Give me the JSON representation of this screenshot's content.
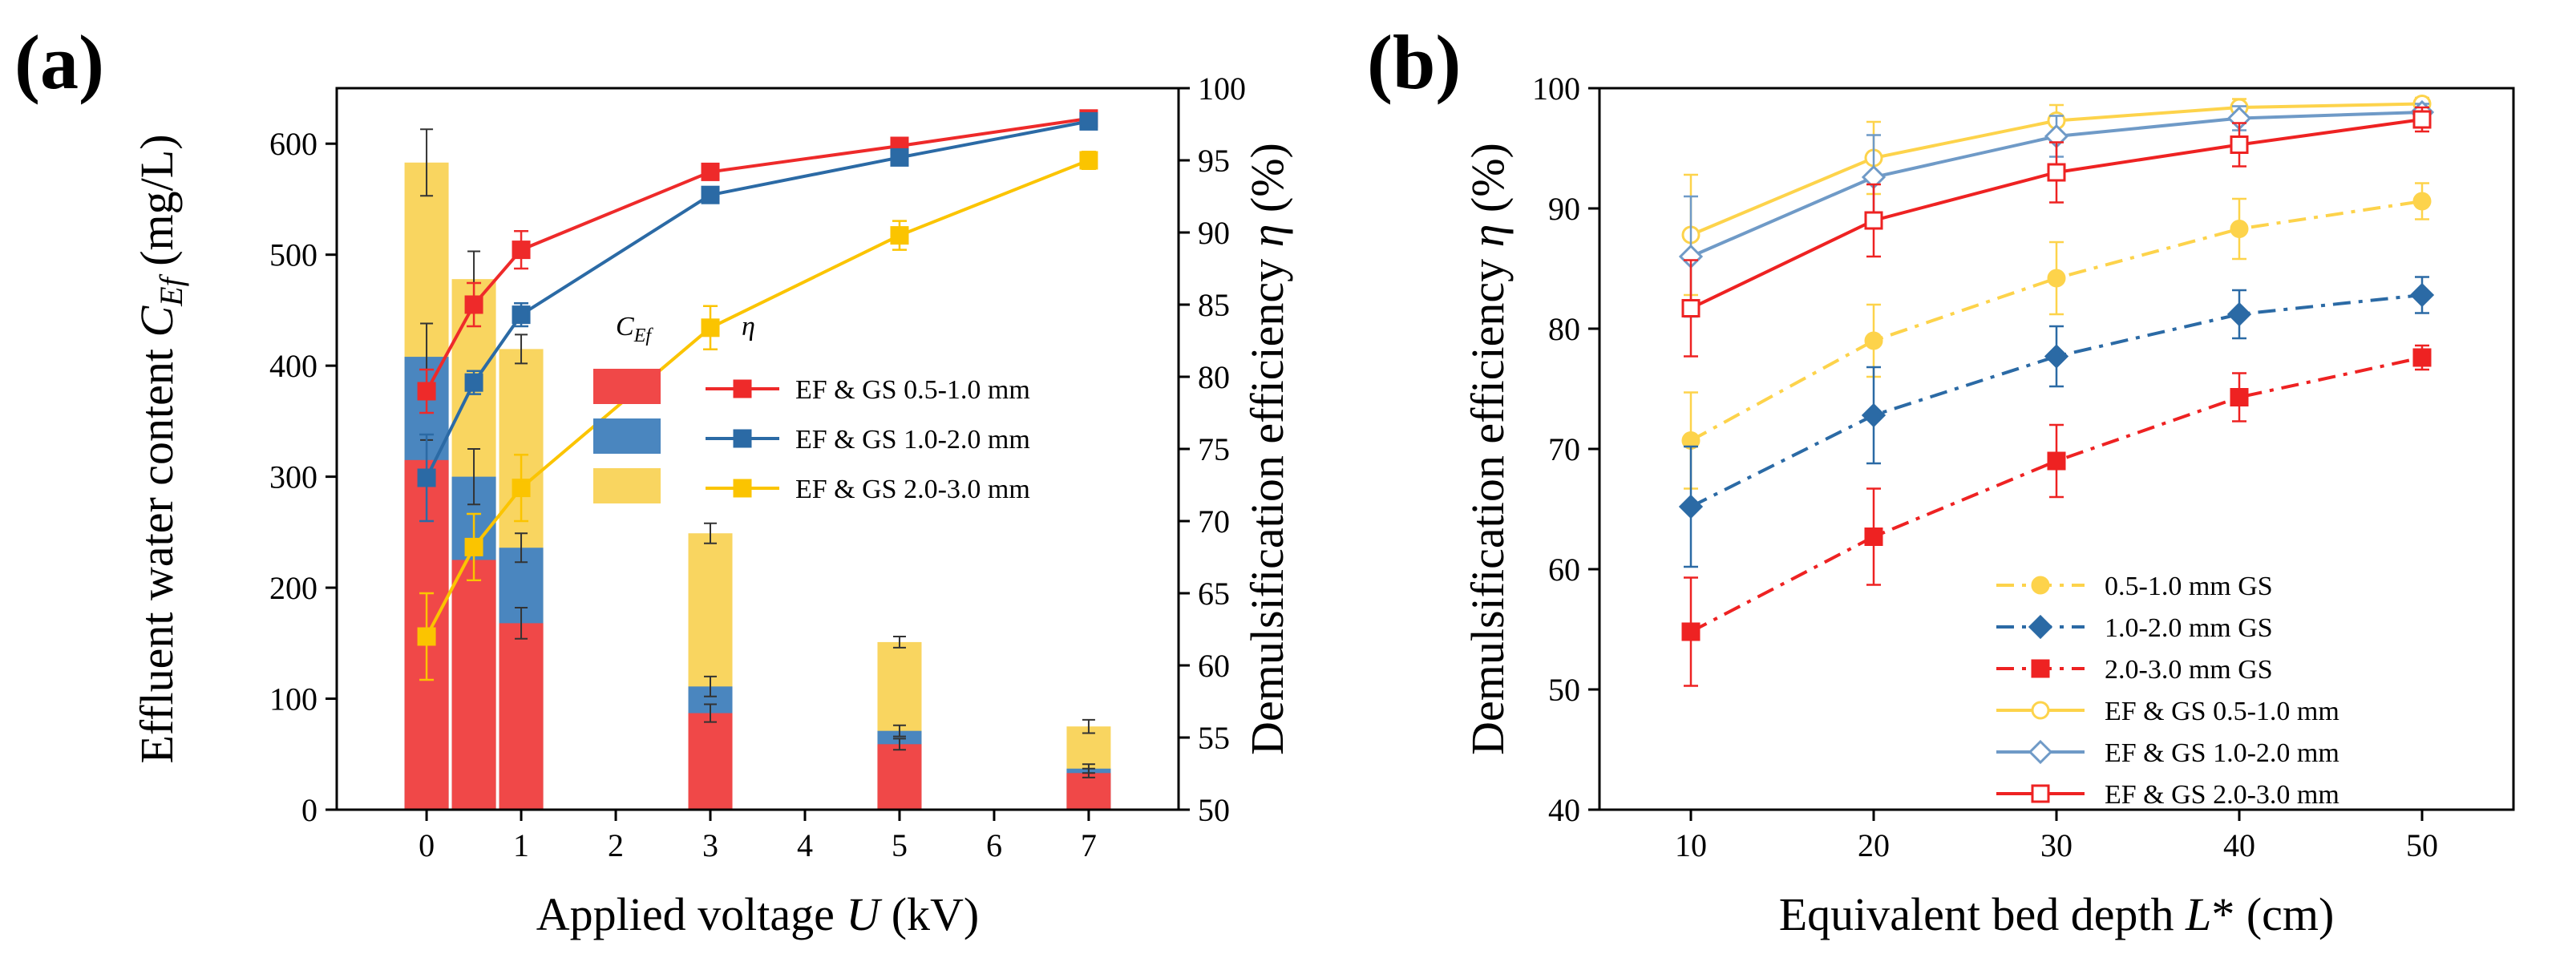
{
  "colors": {
    "red": "#ee2a2a",
    "blue": "#2b6aa5",
    "yellow": "#fbc400",
    "bar_red": "#f04848",
    "bar_blue": "#4a86bf",
    "bar_yellow": "#f9d560",
    "light_yellow": "#fdd34b",
    "light_blue": "#6f9ac7",
    "bright_red": "#ee2222"
  },
  "panel_a": {
    "label": "(a)",
    "xlabel_text": "Applied voltage",
    "xlabel_var": "U",
    "xlabel_unit": "(kV)",
    "ylabel_text": "Effluent water content",
    "ylabel_var": "C",
    "ylabel_sub": "Ef",
    "ylabel_unit": "(mg/L)",
    "y2label_text": "Demulsification efficiency",
    "y2label_var": "η",
    "y2label_unit": "(%)",
    "legend_col1_var": "C",
    "legend_col1_sub": "Ef",
    "legend_col2_var": "η"
  },
  "panel_b": {
    "label": "(b)",
    "xlabel_text": "Equivalent bed depth",
    "xlabel_var": "L",
    "xlabel_suffix": "* (cm)",
    "ylabel_text": "Demulsification efficiency",
    "ylabel_var": "η",
    "ylabel_unit": "(%)"
  },
  "chart_data": [
    {
      "type": "bar",
      "panel": "a",
      "subtype": "stacked bar + line (dual axis)",
      "x_ticks": [
        "0",
        "1",
        "2",
        "3",
        "4",
        "5",
        "6",
        "7"
      ],
      "xlim": [
        -0.95,
        7.95
      ],
      "ylim": [
        0,
        650
      ],
      "y_ticks": [
        "0",
        "100",
        "200",
        "300",
        "400",
        "500",
        "600"
      ],
      "y2lim": [
        50,
        100
      ],
      "y2_ticks": [
        "50",
        "55",
        "60",
        "65",
        "70",
        "75",
        "80",
        "85",
        "90",
        "95",
        "100"
      ],
      "bars": [
        {
          "x": 0,
          "red": 315,
          "blue": 408,
          "yellow": 583,
          "err_red": 18,
          "err_blue": 30,
          "err_yellow": 30
        },
        {
          "x": 0.5,
          "red": 225,
          "blue": 300,
          "yellow": 478,
          "err_red": 18,
          "err_blue": 25,
          "err_yellow": 25
        },
        {
          "x": 1,
          "red": 168,
          "blue": 236,
          "yellow": 415,
          "err_red": 14,
          "err_blue": 13,
          "err_yellow": 13
        },
        {
          "x": 3,
          "red": 87,
          "blue": 111,
          "yellow": 249,
          "err_red": 8,
          "err_blue": 9,
          "err_yellow": 9
        },
        {
          "x": 5,
          "red": 59,
          "blue": 71,
          "yellow": 151,
          "err_red": 5,
          "err_blue": 5,
          "err_yellow": 5
        },
        {
          "x": 7,
          "red": 33,
          "blue": 37,
          "yellow": 75,
          "err_red": 4,
          "err_blue": 4,
          "err_yellow": 6
        }
      ],
      "series": [
        {
          "name": "EF & GS   0.5-1.0 mm",
          "color_key": "red",
          "x": [
            0,
            0.5,
            1,
            3,
            5,
            7
          ],
          "y": [
            79.0,
            85.0,
            88.8,
            94.2,
            96.0,
            97.9
          ],
          "err": [
            1.5,
            1.5,
            1.3,
            0.5,
            0.3,
            0.3
          ]
        },
        {
          "name": "EF & GS   1.0-2.0 mm",
          "color_key": "blue",
          "x": [
            0,
            0.5,
            1,
            3,
            5,
            7
          ],
          "y": [
            73.0,
            79.6,
            84.3,
            92.6,
            95.2,
            97.7
          ],
          "err": [
            3.0,
            0.8,
            0.8,
            0.3,
            0.3,
            0.3
          ]
        },
        {
          "name": "EF & GS   2.0-3.0 mm",
          "color_key": "yellow",
          "x": [
            0,
            0.5,
            1,
            3,
            5,
            7
          ],
          "y": [
            62.0,
            68.2,
            72.3,
            83.4,
            89.8,
            95.0
          ],
          "err": [
            3.0,
            2.3,
            2.3,
            1.5,
            1.0,
            0.6
          ]
        }
      ]
    },
    {
      "type": "line",
      "panel": "b",
      "x_ticks": [
        "10",
        "20",
        "30",
        "40",
        "50"
      ],
      "xlim": [
        5,
        55
      ],
      "ylim": [
        40,
        100
      ],
      "y_ticks": [
        "40",
        "50",
        "60",
        "70",
        "80",
        "90",
        "100"
      ],
      "x": [
        10,
        20,
        30,
        40,
        50
      ],
      "series": [
        {
          "name": "0.5-1.0 mm GS",
          "color_key": "light_yellow",
          "marker": "circle-filled",
          "dash": "dashdot",
          "y": [
            70.7,
            79.0,
            84.2,
            88.3,
            90.6
          ],
          "err": [
            4.0,
            3.0,
            3.0,
            2.5,
            1.5
          ]
        },
        {
          "name": "1.0-2.0 mm GS",
          "color_key": "blue",
          "marker": "diamond-filled",
          "dash": "dashdot",
          "y": [
            65.2,
            72.8,
            77.7,
            81.2,
            82.8
          ],
          "err": [
            5.0,
            4.0,
            2.5,
            2.0,
            1.5
          ]
        },
        {
          "name": "2.0-3.0 mm GS",
          "color_key": "bright_red",
          "marker": "square-filled",
          "dash": "dashdot",
          "y": [
            54.8,
            62.7,
            69.0,
            74.3,
            77.6
          ],
          "err": [
            4.5,
            4.0,
            3.0,
            2.0,
            1.0
          ]
        },
        {
          "name": "EF & GS   0.5-1.0 mm",
          "color_key": "light_yellow",
          "marker": "circle-open",
          "dash": "solid",
          "y": [
            87.8,
            94.2,
            97.3,
            98.4,
            98.7
          ],
          "err": [
            5.0,
            3.0,
            1.3,
            0.7,
            0.5
          ]
        },
        {
          "name": "EF & GS   1.0-2.0 mm",
          "color_key": "light_blue",
          "marker": "diamond-open",
          "dash": "solid",
          "y": [
            86.0,
            92.6,
            96.0,
            97.5,
            98.0
          ],
          "err": [
            5.0,
            3.5,
            1.7,
            1.0,
            0.7
          ]
        },
        {
          "name": "EF & GS   2.0-3.0 mm",
          "color_key": "bright_red",
          "marker": "square-open",
          "dash": "solid",
          "y": [
            81.7,
            89.0,
            93.0,
            95.3,
            97.4
          ],
          "err": [
            4.0,
            3.0,
            2.5,
            1.8,
            1.0
          ]
        }
      ]
    }
  ]
}
